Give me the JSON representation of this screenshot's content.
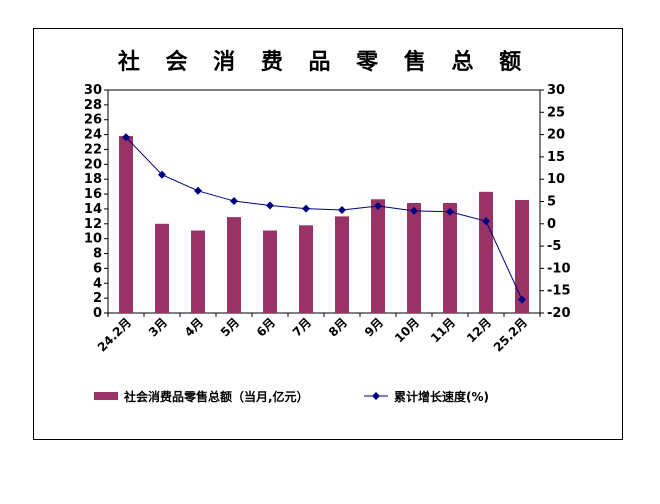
{
  "chart_data": {
    "type": "bar+line",
    "title": "社 会 消 费 品 零 售 总 额",
    "categories": [
      "24.2月",
      "3月",
      "4月",
      "5月",
      "6月",
      "7月",
      "8月",
      "9月",
      "10月",
      "11月",
      "12月",
      "25.2月"
    ],
    "series": [
      {
        "name": "社会消费品零售总额（当月,亿元）",
        "type": "bar",
        "axis": "left",
        "color": "#993366",
        "values": [
          23.8,
          12.0,
          11.1,
          12.9,
          11.1,
          11.8,
          13.0,
          15.3,
          14.8,
          14.8,
          16.3,
          15.2
        ]
      },
      {
        "name": "累计增长速度(%)",
        "type": "line",
        "axis": "right",
        "color": "#000080",
        "marker": "diamond",
        "values": [
          19.4,
          11.0,
          7.4,
          5.1,
          4.1,
          3.4,
          3.1,
          4.0,
          2.9,
          2.7,
          0.6,
          -17.0
        ]
      }
    ],
    "y_left": {
      "min": 0,
      "max": 30,
      "step": 2
    },
    "y_right": {
      "min": -20,
      "max": 30,
      "step": 5
    },
    "grid": false,
    "legend_position": "bottom"
  }
}
